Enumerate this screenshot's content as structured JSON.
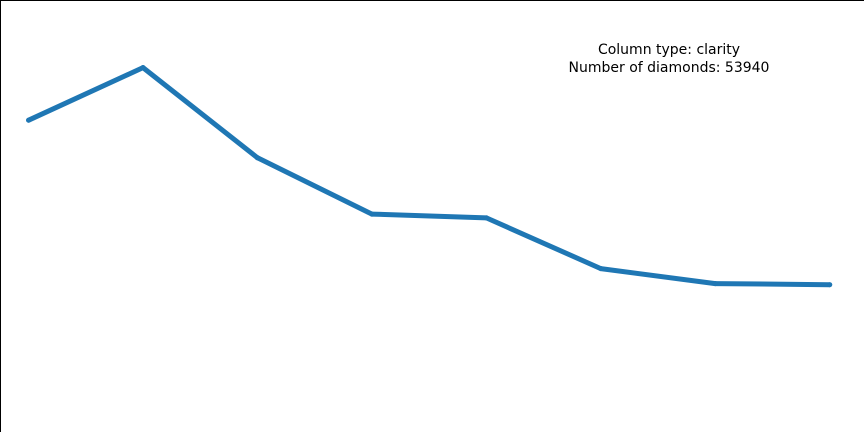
{
  "chart_data": {
    "type": "line",
    "title": "",
    "xlabel": "",
    "ylabel": "",
    "x": [
      0,
      1,
      2,
      3,
      4,
      5,
      6,
      7
    ],
    "series": [
      {
        "values": [
          7.8,
          9.2,
          6.8,
          5.3,
          5.2,
          3.85,
          3.45,
          3.42
        ]
      }
    ],
    "xlim": [
      -0.25,
      7.3
    ],
    "ylim": [
      -0.5,
      11.0
    ],
    "grid": false,
    "annotation": {
      "line1": "Column type: clarity",
      "line2": "Number of diamonds: 53940"
    }
  },
  "colors": {
    "line": "#1f77b4",
    "spine": "#000000",
    "background": "#ffffff"
  }
}
